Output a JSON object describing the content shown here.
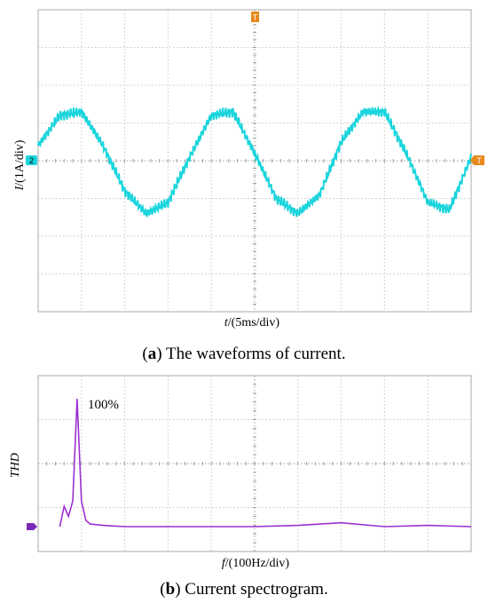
{
  "panel_a": {
    "caption_letter": "a",
    "caption_text": "The waveforms of current.",
    "ylabel_var": "I",
    "ylabel_unit": "/(1A/div)",
    "xlabel_var": "t",
    "xlabel_unit": "/(5ms/div)",
    "channel_marker": "2",
    "trigger_marker": "T",
    "wave_color": "#19d4dc",
    "marker_color": "#e8891e"
  },
  "panel_b": {
    "caption_letter": "b",
    "caption_text": "Current spectrogram.",
    "ylabel": "THD",
    "xlabel_var": "f",
    "xlabel_unit": "/(100Hz/div)",
    "annotation": "100%",
    "wave_color": "#9b30d0",
    "marker_color": "#7a2ab8"
  },
  "chart_data": [
    {
      "type": "line",
      "title": "",
      "xlabel": "t/(5ms/div)",
      "ylabel": "I/(1A/div)",
      "x_divisions": 10,
      "y_divisions": 8,
      "series": [
        {
          "x": [
            0,
            0.5,
            1,
            1.5,
            2,
            2.5,
            3,
            3.5,
            4,
            4.5,
            5,
            5.5,
            6,
            6.5,
            7,
            7.5,
            8,
            8.5,
            9,
            9.5,
            10
          ],
          "y": [
            0.4,
            1.2,
            1.3,
            0.4,
            -0.8,
            -1.4,
            -1.1,
            0.1,
            1.2,
            1.3,
            0.2,
            -1.0,
            -1.4,
            -0.9,
            0.5,
            1.3,
            1.3,
            0.2,
            -1.1,
            -1.3,
            0.1
          ]
        }
      ],
      "grid": true
    },
    {
      "type": "line",
      "title": "",
      "xlabel": "f/(100Hz/div)",
      "ylabel": "THD",
      "x_divisions": 10,
      "y_divisions": 4,
      "series": [
        {
          "x": [
            0.5,
            0.6,
            0.7,
            0.8,
            0.9,
            1.0,
            1.1,
            1.2,
            1.5,
            2,
            3,
            4,
            5,
            6,
            7,
            8,
            9,
            10
          ],
          "y": [
            0,
            16,
            8,
            20,
            100,
            20,
            5,
            2,
            1,
            0,
            0,
            0,
            0,
            1,
            3,
            0,
            1,
            0
          ]
        }
      ],
      "annotations": [
        "100%"
      ],
      "grid": true
    }
  ]
}
